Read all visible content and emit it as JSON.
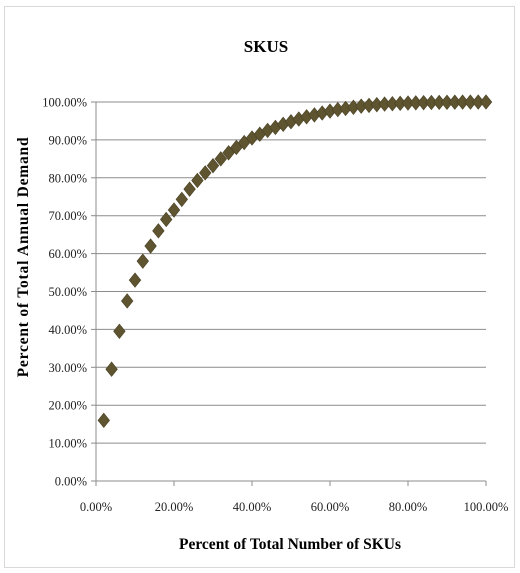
{
  "chart_data": {
    "type": "scatter",
    "title": "SKUS",
    "xlabel": "Percent of Total Number of SKUs",
    "ylabel": "Percent of Total Annual Demand",
    "xlim": [
      0,
      100
    ],
    "ylim": [
      0,
      100
    ],
    "x_ticks": [
      "0.00%",
      "20.00%",
      "40.00%",
      "60.00%",
      "80.00%",
      "100.00%"
    ],
    "y_ticks": [
      "0.00%",
      "10.00%",
      "20.00%",
      "30.00%",
      "40.00%",
      "50.00%",
      "60.00%",
      "70.00%",
      "80.00%",
      "90.00%",
      "100.00%"
    ],
    "grid": "horizontal",
    "legend": "none",
    "marker": "diamond",
    "marker_color": "#5e5430",
    "series": [
      {
        "x": [
          2,
          4,
          6,
          8,
          10,
          12,
          14,
          16,
          18,
          20,
          22,
          24,
          26,
          28,
          30,
          32,
          34,
          36,
          38,
          40,
          42,
          44,
          46,
          48,
          50,
          52,
          54,
          56,
          58,
          60,
          62,
          64,
          66,
          68,
          70,
          72,
          74,
          76,
          78,
          80,
          82,
          84,
          86,
          88,
          90,
          92,
          94,
          96,
          98,
          100
        ],
        "y": [
          16,
          29.5,
          39.5,
          47.5,
          53,
          58,
          62,
          66,
          69,
          71.5,
          74.3,
          77,
          79.3,
          81.3,
          83.2,
          85,
          86.6,
          88,
          89.3,
          90.5,
          91.5,
          92.5,
          93.3,
          94.1,
          94.8,
          95.5,
          96.1,
          96.6,
          97.1,
          97.6,
          98,
          98.3,
          98.6,
          98.9,
          99.1,
          99.3,
          99.45,
          99.55,
          99.65,
          99.72,
          99.78,
          99.83,
          99.87,
          99.9,
          99.93,
          99.95,
          99.97,
          99.98,
          99.99,
          100
        ]
      }
    ]
  }
}
